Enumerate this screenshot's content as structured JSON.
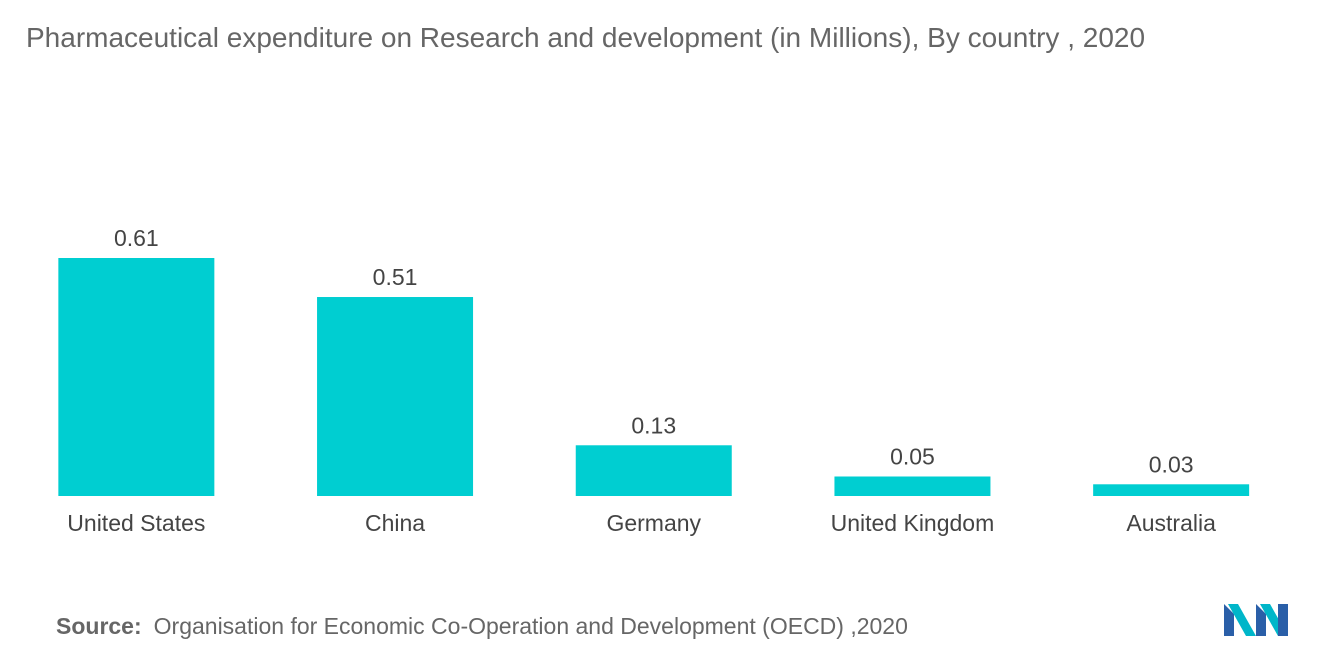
{
  "title": "Pharmaceutical expenditure on Research and development (in Millions), By country , 2020",
  "source": {
    "label": "Source:",
    "text": "Organisation for Economic Co-Operation and Development (OECD) ,2020"
  },
  "colors": {
    "bar": "#00CED1",
    "text": "#444444"
  },
  "logo_icon": "mordor-intelligence-logo",
  "chart_data": {
    "type": "bar",
    "categories": [
      "United States",
      "China",
      "Germany",
      "United Kingdom",
      "Australia"
    ],
    "values": [
      0.61,
      0.51,
      0.13,
      0.05,
      0.03
    ],
    "data_labels": [
      "0.61",
      "0.51",
      "0.13",
      "0.05",
      "0.03"
    ],
    "title": "Pharmaceutical expenditure on Research and development (in Millions), By country , 2020",
    "xlabel": "",
    "ylabel": "",
    "ylim": [
      0,
      0.61
    ],
    "grid": false,
    "legend": "none"
  }
}
